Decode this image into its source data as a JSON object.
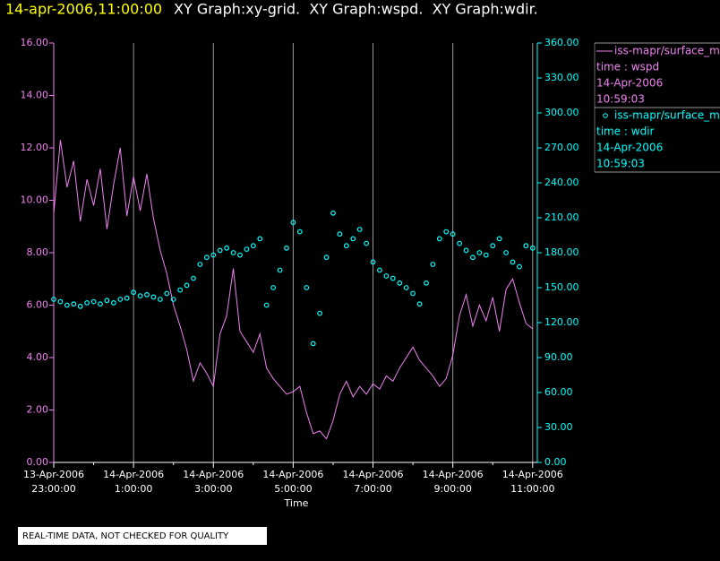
{
  "chart_data": {
    "type": "line",
    "title": "14-apr-2006,11:00:00",
    "subtitle": "XY Graph:xy-grid.  XY Graph:wspd.  XY Graph:wdir.",
    "x_label": "Time",
    "notice": "REAL-TIME DATA, NOT CHECKED FOR QUALITY",
    "grid": "x",
    "xlim": [
      "2006-04-13T23:00",
      "2006-04-14T11:07"
    ],
    "xticks": [
      {
        "value": "2006-04-13T23:00",
        "label": "13-Apr-2006\n23:00:00"
      },
      {
        "value": "2006-04-14T01:00",
        "label": "14-Apr-2006\n1:00:00"
      },
      {
        "value": "2006-04-14T03:00",
        "label": "14-Apr-2006\n3:00:00"
      },
      {
        "value": "2006-04-14T05:00",
        "label": "14-Apr-2006\n5:00:00"
      },
      {
        "value": "2006-04-14T07:00",
        "label": "14-Apr-2006\n7:00:00"
      },
      {
        "value": "2006-04-14T09:00",
        "label": "14-Apr-2006\n9:00:00"
      },
      {
        "value": "2006-04-14T11:00",
        "label": "14-Apr-2006\n11:00:00"
      }
    ],
    "xticks_minor": [
      "2006-04-14T00:00",
      "2006-04-14T02:00",
      "2006-04-14T04:00",
      "2006-04-14T06:00",
      "2006-04-14T08:00",
      "2006-04-14T10:00"
    ],
    "ylim": [
      0,
      16
    ],
    "yticks": [
      {
        "value": 0,
        "label": "0.00"
      },
      {
        "value": 2,
        "label": "2.00"
      },
      {
        "value": 4,
        "label": "4.00"
      },
      {
        "value": 6,
        "label": "6.00"
      },
      {
        "value": 8,
        "label": "8.00"
      },
      {
        "value": 10,
        "label": "10.00"
      },
      {
        "value": 12,
        "label": "12.00"
      },
      {
        "value": 14,
        "label": "14.00"
      },
      {
        "value": 16,
        "label": "16.00"
      }
    ],
    "y2lim": [
      0,
      360
    ],
    "y2ticks": [
      {
        "value": 0,
        "label": "0.00"
      },
      {
        "value": 30,
        "label": "30.00"
      },
      {
        "value": 60,
        "label": "60.00"
      },
      {
        "value": 90,
        "label": "90.00"
      },
      {
        "value": 120,
        "label": "120.00"
      },
      {
        "value": 150,
        "label": "150.00"
      },
      {
        "value": 180,
        "label": "180.00"
      },
      {
        "value": 210,
        "label": "210.00"
      },
      {
        "value": 240,
        "label": "240.00"
      },
      {
        "value": 270,
        "label": "270.00"
      },
      {
        "value": 300,
        "label": "300.00"
      },
      {
        "value": 330,
        "label": "330.00"
      },
      {
        "value": 360,
        "label": "360.00"
      }
    ],
    "x": [
      "2006-04-13T23:00",
      "2006-04-13T23:10",
      "2006-04-13T23:20",
      "2006-04-13T23:30",
      "2006-04-13T23:40",
      "2006-04-13T23:50",
      "2006-04-14T00:00",
      "2006-04-14T00:10",
      "2006-04-14T00:20",
      "2006-04-14T00:30",
      "2006-04-14T00:40",
      "2006-04-14T00:50",
      "2006-04-14T01:00",
      "2006-04-14T01:10",
      "2006-04-14T01:20",
      "2006-04-14T01:30",
      "2006-04-14T01:40",
      "2006-04-14T01:50",
      "2006-04-14T02:00",
      "2006-04-14T02:10",
      "2006-04-14T02:20",
      "2006-04-14T02:30",
      "2006-04-14T02:40",
      "2006-04-14T02:50",
      "2006-04-14T03:00",
      "2006-04-14T03:10",
      "2006-04-14T03:20",
      "2006-04-14T03:30",
      "2006-04-14T03:40",
      "2006-04-14T03:50",
      "2006-04-14T04:00",
      "2006-04-14T04:10",
      "2006-04-14T04:20",
      "2006-04-14T04:30",
      "2006-04-14T04:40",
      "2006-04-14T04:50",
      "2006-04-14T05:00",
      "2006-04-14T05:10",
      "2006-04-14T05:20",
      "2006-04-14T05:30",
      "2006-04-14T05:40",
      "2006-04-14T05:50",
      "2006-04-14T06:00",
      "2006-04-14T06:10",
      "2006-04-14T06:20",
      "2006-04-14T06:30",
      "2006-04-14T06:40",
      "2006-04-14T06:50",
      "2006-04-14T07:00",
      "2006-04-14T07:10",
      "2006-04-14T07:20",
      "2006-04-14T07:30",
      "2006-04-14T07:40",
      "2006-04-14T07:50",
      "2006-04-14T08:00",
      "2006-04-14T08:10",
      "2006-04-14T08:20",
      "2006-04-14T08:30",
      "2006-04-14T08:40",
      "2006-04-14T08:50",
      "2006-04-14T09:00",
      "2006-04-14T09:10",
      "2006-04-14T09:20",
      "2006-04-14T09:30",
      "2006-04-14T09:40",
      "2006-04-14T09:50",
      "2006-04-14T10:00",
      "2006-04-14T10:10",
      "2006-04-14T10:20",
      "2006-04-14T10:30",
      "2006-04-14T10:40",
      "2006-04-14T10:50",
      "2006-04-14T11:00"
    ],
    "series": [
      {
        "name": "iss-mapr/surface_m",
        "color": "#ee82ee",
        "axis": "y",
        "marker": "line",
        "legend_lines": [
          "time : wspd",
          "14-Apr-2006",
          "10:59:03"
        ],
        "values": [
          9.5,
          12.3,
          10.5,
          11.5,
          9.2,
          10.8,
          9.8,
          11.2,
          8.9,
          10.6,
          12.0,
          9.4,
          10.9,
          9.6,
          11.0,
          9.3,
          8.1,
          7.2,
          6.0,
          5.2,
          4.3,
          3.1,
          3.8,
          3.4,
          2.9,
          4.9,
          5.6,
          7.4,
          5.0,
          4.6,
          4.2,
          4.9,
          3.6,
          3.2,
          2.9,
          2.6,
          2.7,
          2.9,
          1.9,
          1.1,
          1.2,
          0.9,
          1.6,
          2.6,
          3.1,
          2.5,
          2.9,
          2.6,
          3.0,
          2.8,
          3.3,
          3.1,
          3.6,
          4.0,
          4.4,
          3.9,
          3.6,
          3.3,
          2.9,
          3.2,
          4.1,
          5.6,
          6.4,
          5.2,
          6.0,
          5.4,
          6.3,
          5.0,
          6.6,
          7.0,
          6.1,
          5.3,
          5.1
        ]
      },
      {
        "name": "iss-mapr/surface_m",
        "color": "#00ffff",
        "axis": "y2",
        "marker": "circle",
        "legend_lines": [
          "time : wdir",
          "14-Apr-2006",
          "10:59:03"
        ],
        "values": [
          140,
          138,
          135,
          136,
          134,
          137,
          138,
          136,
          139,
          137,
          140,
          141,
          146,
          143,
          144,
          142,
          140,
          145,
          140,
          148,
          152,
          158,
          170,
          176,
          178,
          182,
          184,
          180,
          178,
          183,
          186,
          192,
          135,
          150,
          165,
          184,
          206,
          198,
          150,
          102,
          128,
          176,
          214,
          196,
          186,
          192,
          200,
          188,
          172,
          165,
          160,
          158,
          154,
          150,
          145,
          136,
          154,
          170,
          192,
          198,
          196,
          188,
          182,
          176,
          180,
          178,
          186,
          192,
          180,
          172,
          168,
          186,
          184
        ]
      }
    ]
  }
}
